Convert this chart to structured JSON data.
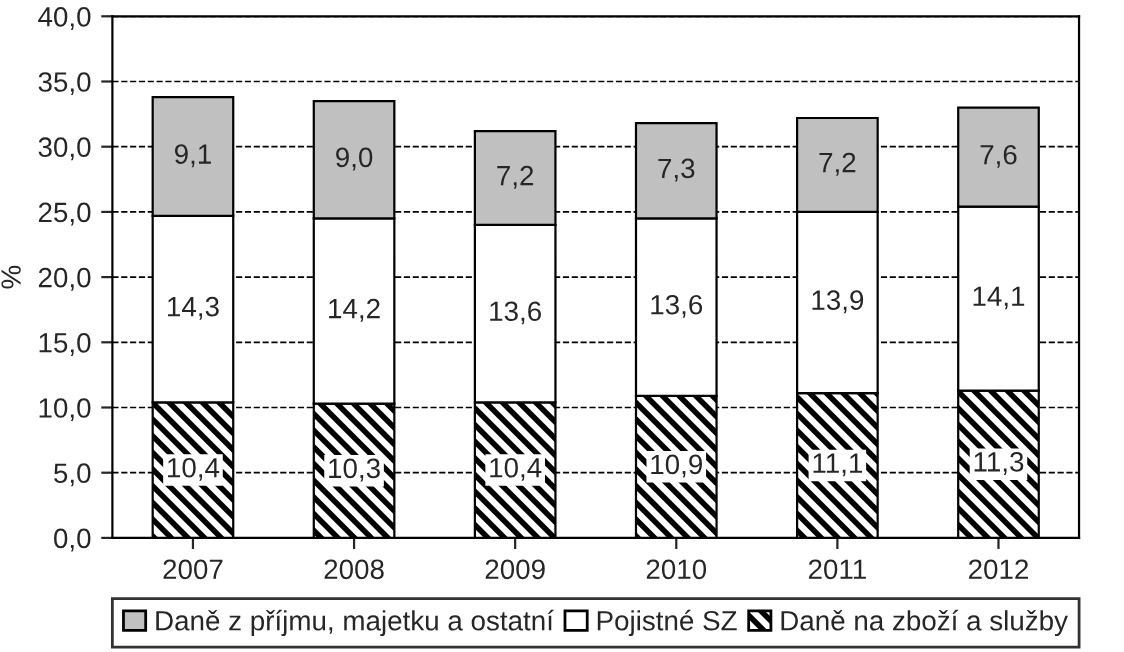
{
  "chart_data": {
    "type": "bar",
    "stacked": true,
    "ylabel": "%",
    "categories": [
      "2007",
      "2008",
      "2009",
      "2010",
      "2011",
      "2012"
    ],
    "series": [
      {
        "name": "Daně na zboží a služby",
        "color": "#000000",
        "values": [
          10.4,
          10.3,
          10.4,
          10.9,
          11.1,
          11.3
        ],
        "value_labels": [
          "10,4",
          "10,3",
          "10,4",
          "10,9",
          "11,1",
          "11,3"
        ]
      },
      {
        "name": "Pojistné SZ",
        "color": "#ffffff",
        "values": [
          14.3,
          14.2,
          13.6,
          13.6,
          13.9,
          14.1
        ],
        "value_labels": [
          "14,3",
          "14,2",
          "13,6",
          "13,6",
          "13,9",
          "14,1"
        ]
      },
      {
        "name": "Daně z příjmu, majetku a ostatní",
        "color": "#c0c0c0",
        "values": [
          9.1,
          9.0,
          7.2,
          7.3,
          7.2,
          7.6
        ],
        "value_labels": [
          "9,1",
          "9,0",
          "7,2",
          "7,3",
          "7,2",
          "7,6"
        ]
      }
    ],
    "ylim": [
      0,
      40
    ],
    "yticks": [
      {
        "value": 0,
        "label": "0,0"
      },
      {
        "value": 5,
        "label": "5,0"
      },
      {
        "value": 10,
        "label": "10,0"
      },
      {
        "value": 15,
        "label": "15,0"
      },
      {
        "value": 20,
        "label": "20,0"
      },
      {
        "value": 25,
        "label": "25,0"
      },
      {
        "value": 30,
        "label": "30,0"
      },
      {
        "value": 35,
        "label": "35,0"
      },
      {
        "value": 40,
        "label": "40,0"
      }
    ],
    "grid": "y",
    "legend": "bottom"
  }
}
